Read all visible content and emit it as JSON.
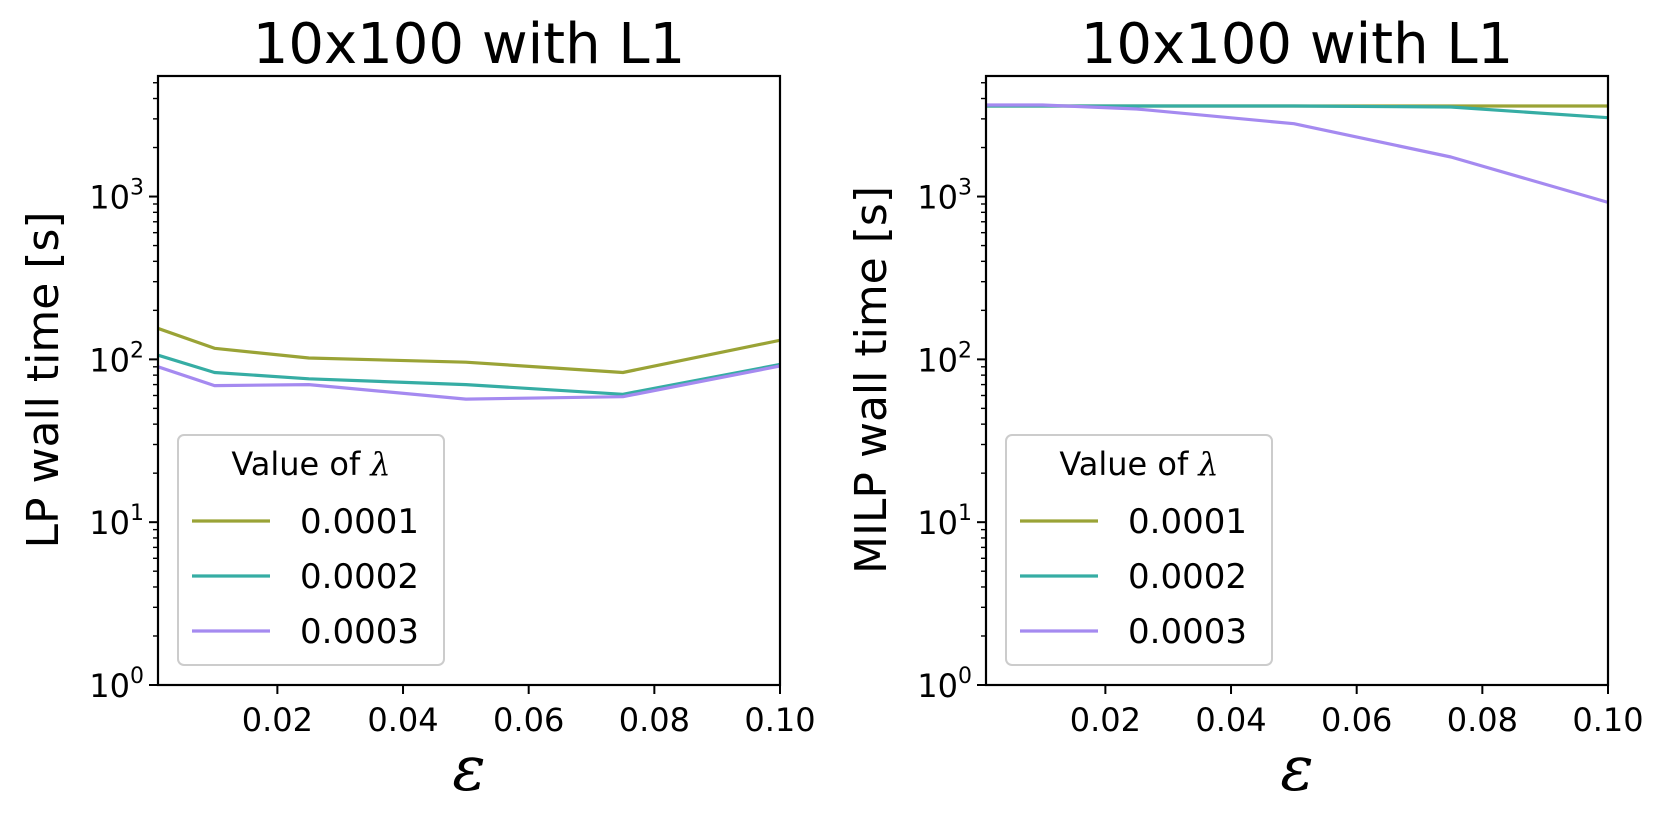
{
  "chart_data": [
    {
      "type": "line",
      "title": "10x100 with L1",
      "xlabel": "ε",
      "ylabel": "LP wall time [s]",
      "yscale": "log",
      "xlim": [
        0.001,
        0.1
      ],
      "ylim": [
        1,
        5500
      ],
      "xticks": [
        0.02,
        0.04,
        0.06,
        0.08,
        0.1
      ],
      "xtick_labels": [
        "0.02",
        "0.04",
        "0.06",
        "0.08",
        "0.10"
      ],
      "yticks": [
        1,
        10,
        100,
        1000
      ],
      "ytick_labels": [
        {
          "base": "10",
          "exp": "0"
        },
        {
          "base": "10",
          "exp": "1"
        },
        {
          "base": "10",
          "exp": "2"
        },
        {
          "base": "10",
          "exp": "3"
        }
      ],
      "x": [
        0.001,
        0.01,
        0.025,
        0.05,
        0.075,
        0.1
      ],
      "legend": {
        "title": "Value of λ",
        "title_text": "Value of ",
        "title_symbol": "λ",
        "position": "lower-left"
      },
      "series": [
        {
          "name": "0.0001",
          "color": "#9aa336",
          "values": [
            155,
            117,
            102,
            96,
            83,
            131
          ]
        },
        {
          "name": "0.0002",
          "color": "#36ada4",
          "values": [
            106,
            83,
            76,
            70,
            61,
            93
          ]
        },
        {
          "name": "0.0003",
          "color": "#a58af0",
          "values": [
            90,
            69,
            70,
            57,
            59,
            91
          ]
        }
      ]
    },
    {
      "type": "line",
      "title": "10x100 with L1",
      "xlabel": "ε",
      "ylabel": "MILP wall time [s]",
      "yscale": "log",
      "xlim": [
        0.001,
        0.1
      ],
      "ylim": [
        1,
        5500
      ],
      "xticks": [
        0.02,
        0.04,
        0.06,
        0.08,
        0.1
      ],
      "xtick_labels": [
        "0.02",
        "0.04",
        "0.06",
        "0.08",
        "0.10"
      ],
      "yticks": [
        1,
        10,
        100,
        1000
      ],
      "ytick_labels": [
        {
          "base": "10",
          "exp": "0"
        },
        {
          "base": "10",
          "exp": "1"
        },
        {
          "base": "10",
          "exp": "2"
        },
        {
          "base": "10",
          "exp": "3"
        }
      ],
      "x": [
        0.001,
        0.01,
        0.025,
        0.05,
        0.075,
        0.1
      ],
      "legend": {
        "title": "Value of λ",
        "title_text": "Value of ",
        "title_symbol": "λ",
        "position": "lower-left"
      },
      "series": [
        {
          "name": "0.0001",
          "color": "#9aa336",
          "values": [
            3600,
            3600,
            3600,
            3600,
            3600,
            3600
          ]
        },
        {
          "name": "0.0002",
          "color": "#36ada4",
          "values": [
            3600,
            3600,
            3600,
            3600,
            3550,
            3050
          ]
        },
        {
          "name": "0.0003",
          "color": "#a58af0",
          "values": [
            3650,
            3650,
            3450,
            2800,
            1750,
            920
          ]
        }
      ]
    }
  ]
}
